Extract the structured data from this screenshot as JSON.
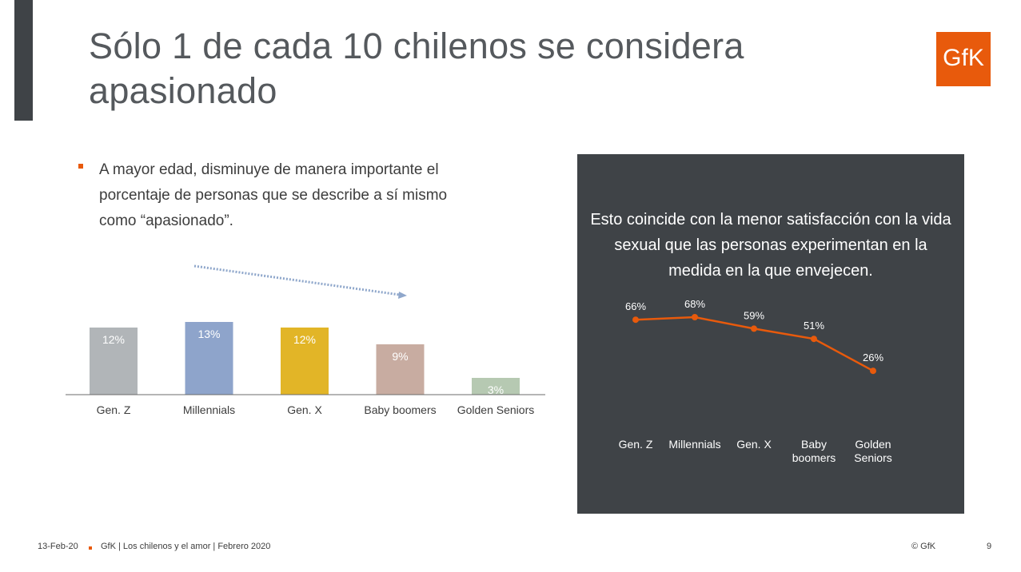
{
  "slide": {
    "title": "Sólo 1 de cada 10 chilenos se considera apasionado",
    "logo_text": "GfK",
    "bullet": "A mayor edad, disminuye de manera importante el porcentaje de personas que se describe a sí mismo como “apasionado”.",
    "panel_text": "Esto coincide con la menor satisfacción con la vida sexual que las personas experimentan en la medida en la que envejecen."
  },
  "footer": {
    "date": "13-Feb-20",
    "source": "GfK | Los chilenos y el amor | Febrero 2020",
    "copyright": "© GfK",
    "page": "9"
  },
  "colors": {
    "accent": "#e85a0c",
    "dark_panel": "#3f4347",
    "arrow": "#8fa7cb"
  },
  "chart_data": [
    {
      "type": "bar",
      "categories": [
        "Gen. Z",
        "Millennials",
        "Gen. X",
        "Baby boomers",
        "Golden Seniors"
      ],
      "values": [
        12,
        13,
        12,
        9,
        3
      ],
      "labels": [
        "12%",
        "13%",
        "12%",
        "9%",
        "3%"
      ],
      "colors": [
        "#b1b5b8",
        "#8ea4cb",
        "#e2b527",
        "#c8aca1",
        "#b6c9b2"
      ],
      "ylim": [
        0,
        13
      ],
      "title": "",
      "xlabel": "",
      "ylabel": ""
    },
    {
      "type": "line",
      "categories": [
        "Gen. Z",
        "Millennials",
        "Gen. X",
        "Baby boomers",
        "Golden Seniors"
      ],
      "values": [
        66,
        68,
        59,
        51,
        26
      ],
      "labels": [
        "66%",
        "68%",
        "59%",
        "51%",
        "26%"
      ],
      "line_color": "#e85a0c",
      "ylim": [
        0,
        100
      ],
      "title": "",
      "xlabel": "",
      "ylabel": ""
    }
  ]
}
